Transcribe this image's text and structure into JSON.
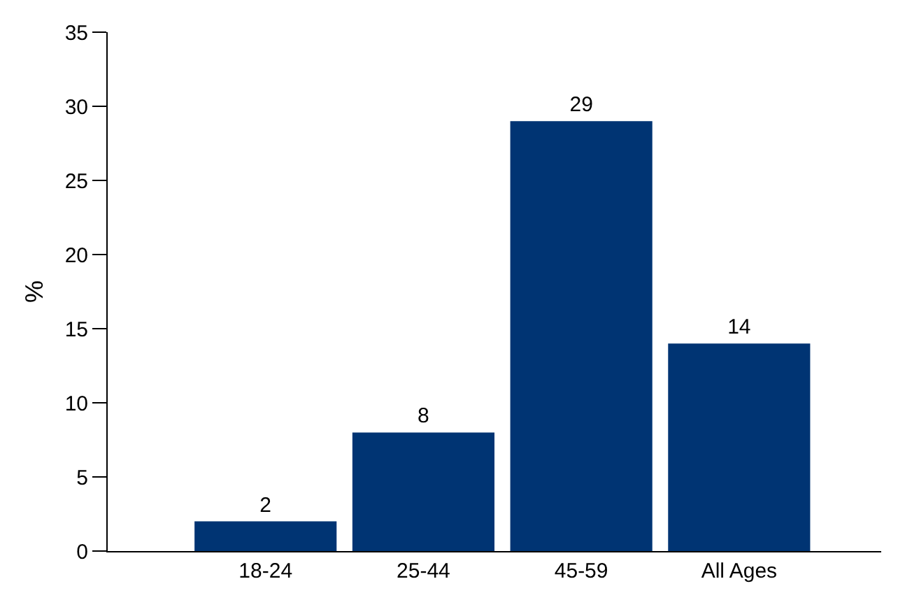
{
  "chart_data": {
    "type": "bar",
    "ylabel": "%",
    "categories": [
      "18-24",
      "25-44",
      "45-59",
      "All Ages"
    ],
    "values": [
      2,
      8,
      29,
      14
    ],
    "color": "#003473",
    "ylim": [
      0,
      35
    ],
    "yticks": [
      0,
      5,
      10,
      15,
      20,
      25,
      30,
      35
    ],
    "data_labels": true
  }
}
